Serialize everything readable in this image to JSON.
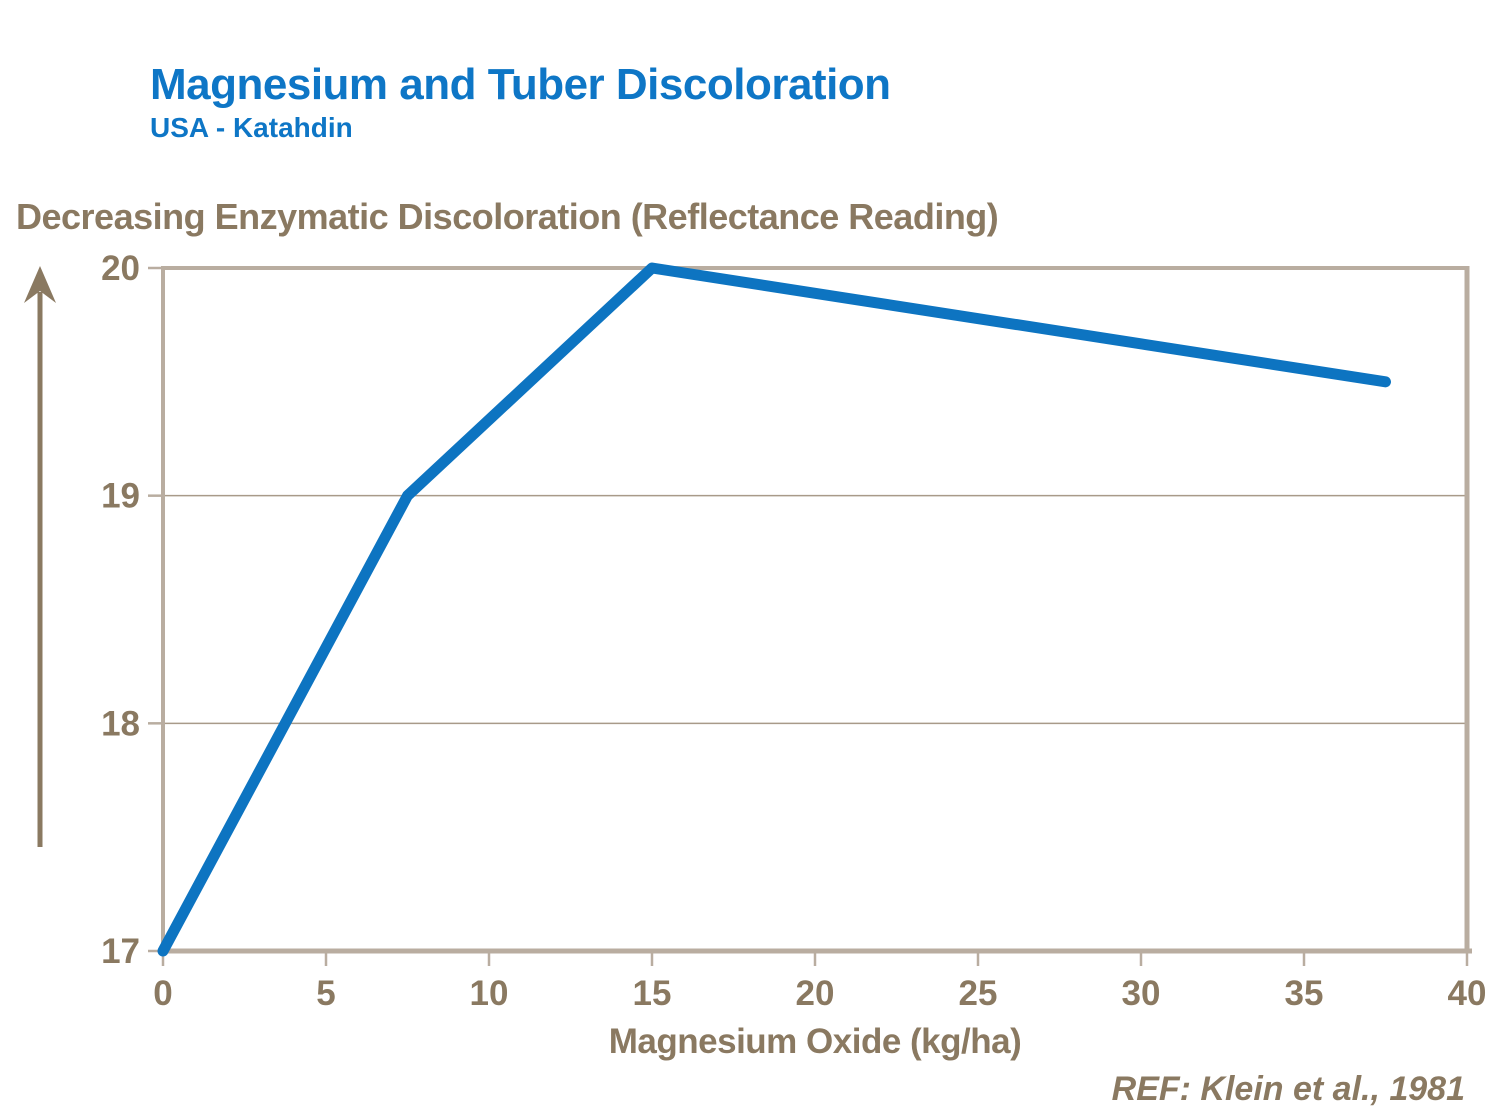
{
  "header": {
    "title": "Magnesium and Tuber Discoloration",
    "subtitle": "USA - Katahdin"
  },
  "y_axis_header": "Decreasing Enzymatic Discoloration (Reflectance Reading)",
  "footer": {
    "reference": "REF: Klein et al., 1981"
  },
  "colors": {
    "title_blue": "#0e76c6",
    "line_blue": "#0d74c1",
    "text_brown": "#8a7961",
    "axis_tan": "#b9ada0",
    "gridline": "#a89a89"
  },
  "chart_data": {
    "type": "line",
    "title": "Magnesium and Tuber Discoloration",
    "subtitle": "USA - Katahdin",
    "xlabel": "Magnesium Oxide (kg/ha)",
    "ylabel": "Decreasing Enzymatic Discoloration (Reflectance Reading)",
    "series": [
      {
        "name": "Reflectance Reading",
        "points": [
          {
            "x": 0,
            "y": 17
          },
          {
            "x": 7.5,
            "y": 19
          },
          {
            "x": 15,
            "y": 20
          },
          {
            "x": 37.5,
            "y": 19.5
          }
        ]
      }
    ],
    "xlim": [
      0,
      40
    ],
    "ylim": [
      17,
      20
    ],
    "x_ticks": [
      0,
      5,
      10,
      15,
      20,
      25,
      30,
      35,
      40
    ],
    "y_ticks": [
      17,
      18,
      19,
      20
    ],
    "grid": "horizontal gridlines at interior y ticks (18, 19)",
    "legend": "none",
    "annotations": "upward arrow left of y axis indicating increasing reflectance / decreasing discoloration"
  }
}
